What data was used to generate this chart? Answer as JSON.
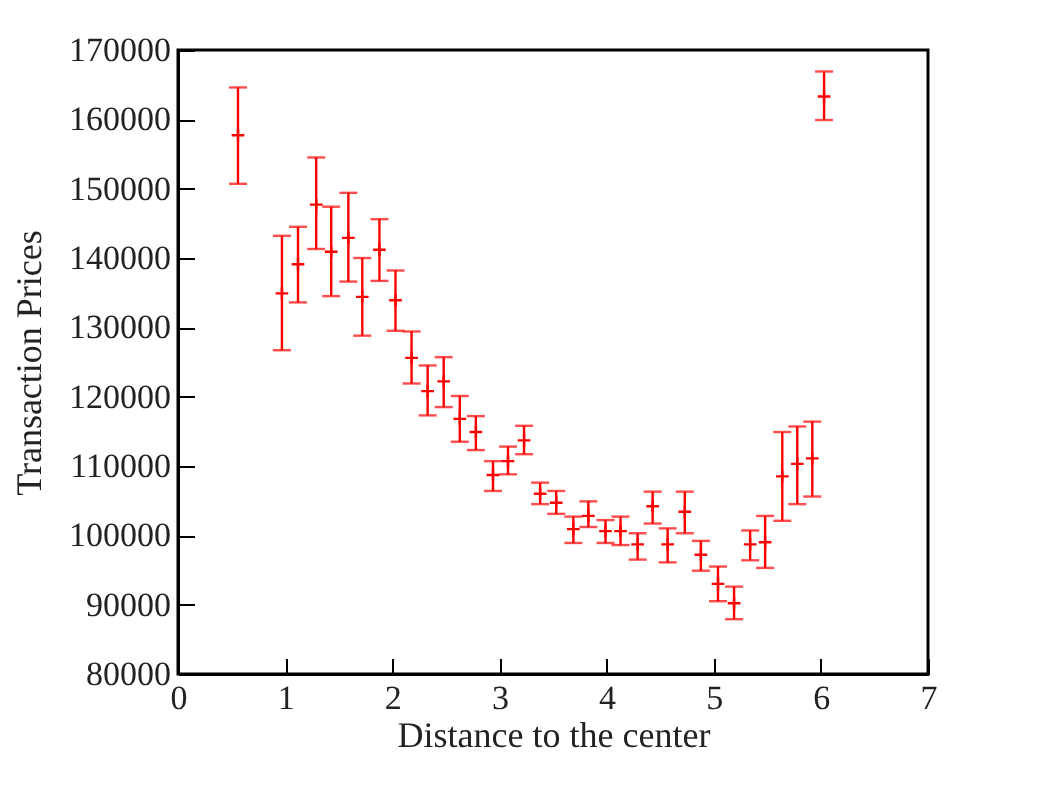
{
  "chart_data": {
    "type": "scatter",
    "xlabel": "Distance to the center",
    "ylabel": "Transaction Prices",
    "x": [
      0.56,
      0.97,
      1.12,
      1.29,
      1.43,
      1.59,
      1.72,
      1.88,
      2.03,
      2.18,
      2.33,
      2.48,
      2.63,
      2.78,
      2.94,
      3.08,
      3.23,
      3.38,
      3.53,
      3.69,
      3.83,
      3.99,
      4.13,
      4.29,
      4.43,
      4.57,
      4.73,
      4.88,
      5.04,
      5.19,
      5.34,
      5.48,
      5.64,
      5.78,
      5.92,
      6.03
    ],
    "values": [
      157700,
      134900,
      139100,
      147700,
      140900,
      142900,
      134400,
      141200,
      133900,
      125600,
      120800,
      122200,
      116800,
      114900,
      108700,
      110700,
      113700,
      106000,
      104700,
      100900,
      102800,
      100600,
      100600,
      98700,
      104200,
      98700,
      103400,
      97200,
      93000,
      90200,
      98700,
      99000,
      108500,
      110300,
      111100,
      163300
    ],
    "errors": [
      [
        150700,
        164600
      ],
      [
        126700,
        143200
      ],
      [
        133600,
        144500
      ],
      [
        141300,
        154500
      ],
      [
        134500,
        147400
      ],
      [
        136600,
        149400
      ],
      [
        128800,
        140000
      ],
      [
        136700,
        145600
      ],
      [
        129500,
        138200
      ],
      [
        121900,
        129400
      ],
      [
        117300,
        124500
      ],
      [
        118500,
        125700
      ],
      [
        113500,
        120100
      ],
      [
        112300,
        117200
      ],
      [
        106400,
        110700
      ],
      [
        108800,
        112800
      ],
      [
        111700,
        115800
      ],
      [
        104500,
        107600
      ],
      [
        103100,
        106400
      ],
      [
        98900,
        102700
      ],
      [
        101200,
        104900
      ],
      [
        98900,
        102200
      ],
      [
        98600,
        102700
      ],
      [
        96500,
        100300
      ],
      [
        101700,
        106300
      ],
      [
        96100,
        101000
      ],
      [
        100300,
        106300
      ],
      [
        94900,
        99200
      ],
      [
        90500,
        95500
      ],
      [
        87900,
        92600
      ],
      [
        96400,
        100700
      ],
      [
        95300,
        102800
      ],
      [
        102100,
        114900
      ],
      [
        104500,
        115700
      ],
      [
        105600,
        116400
      ],
      [
        159900,
        166900
      ]
    ],
    "color": "#ff0000",
    "marker": "cross",
    "xlim": [
      0,
      7
    ],
    "xticks": [
      0,
      1,
      2,
      3,
      4,
      5,
      6,
      7
    ],
    "ylim": [
      80000,
      170000
    ],
    "yticks": [
      80000,
      90000,
      100000,
      110000,
      120000,
      130000,
      140000,
      150000,
      160000,
      170000
    ],
    "grid": false
  }
}
